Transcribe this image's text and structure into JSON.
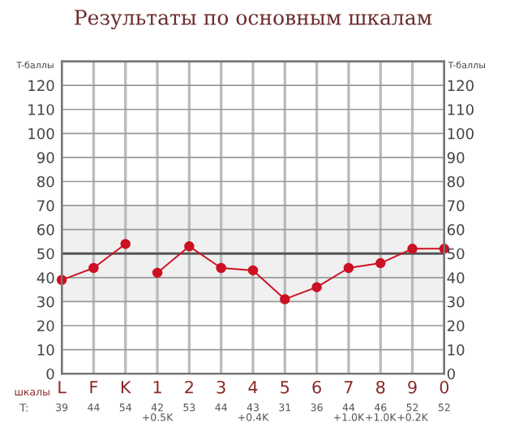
{
  "chart_data": {
    "type": "line",
    "title": "Результаты по основным шкалам",
    "xlabel": "шкалы",
    "ylabel": "T-баллы",
    "y2label": "T-баллы",
    "categories": [
      "L",
      "F",
      "K",
      "1",
      "2",
      "3",
      "4",
      "5",
      "6",
      "7",
      "8",
      "9",
      "0"
    ],
    "series": [
      {
        "color": "#cc1122",
        "values": [
          39,
          44,
          54,
          null,
          null,
          null,
          null,
          null,
          null,
          null,
          null,
          null,
          null
        ]
      },
      {
        "color": "#cc1122",
        "values": [
          null,
          null,
          null,
          42,
          53,
          44,
          43,
          31,
          36,
          44,
          46,
          52,
          52
        ]
      }
    ],
    "ylim": [
      0,
      130
    ],
    "yticks": [
      0,
      10,
      20,
      30,
      40,
      50,
      60,
      70,
      80,
      90,
      100,
      110,
      120
    ],
    "y2lim": [
      0,
      130
    ],
    "y2ticks": [
      0,
      10,
      20,
      30,
      40,
      50,
      60,
      70,
      80,
      90,
      100,
      110,
      120
    ],
    "bands": [
      {
        "axis": "y",
        "from": 30,
        "to": 70,
        "color": "#f0f0f0"
      }
    ],
    "ref_lines": [
      {
        "axis": "y",
        "value": 50,
        "color": "#555555"
      }
    ],
    "annotations": [
      "T:",
      "39",
      "44",
      "54",
      "42\n+0.5K",
      "53",
      "44",
      "43\n+0.4K",
      "31",
      "36",
      "44\n+1.0K",
      "46\n+1.0K",
      "52\n+0.2K",
      "52"
    ],
    "grid": true,
    "marker": "circle",
    "line_style": "solid"
  }
}
